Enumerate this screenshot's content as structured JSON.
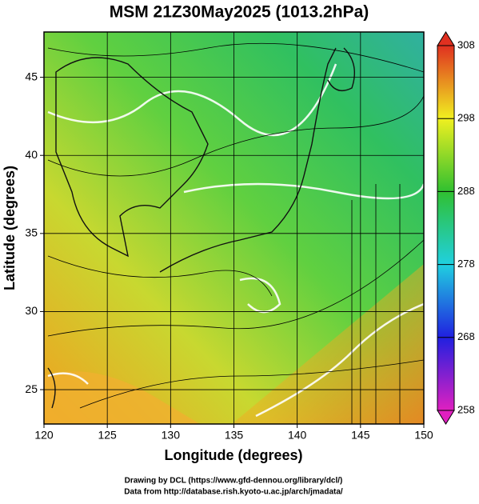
{
  "chart_data": {
    "type": "map",
    "title": "MSM 21Z30May2025 (1013.2hPa)",
    "x_label": "Longitude (degrees)",
    "y_label": "Latitude  (degrees)",
    "xlim": [
      120,
      150
    ],
    "ylim": [
      22.8,
      47.9
    ],
    "xticks": [
      120,
      125,
      130,
      135,
      140,
      145,
      150
    ],
    "yticks": [
      25,
      30,
      35,
      40,
      45
    ],
    "grid": true,
    "colorbar_lim": [
      258,
      308
    ],
    "colorbar_ticks": [
      258,
      268,
      278,
      288,
      298,
      308
    ],
    "credits": [
      "Drawing by DCL (https://www.gfd-dennou.org/library/dcl/)",
      "Data from http://database.rish.kyoto-u.ac.jp/arch/jmadata/"
    ]
  }
}
